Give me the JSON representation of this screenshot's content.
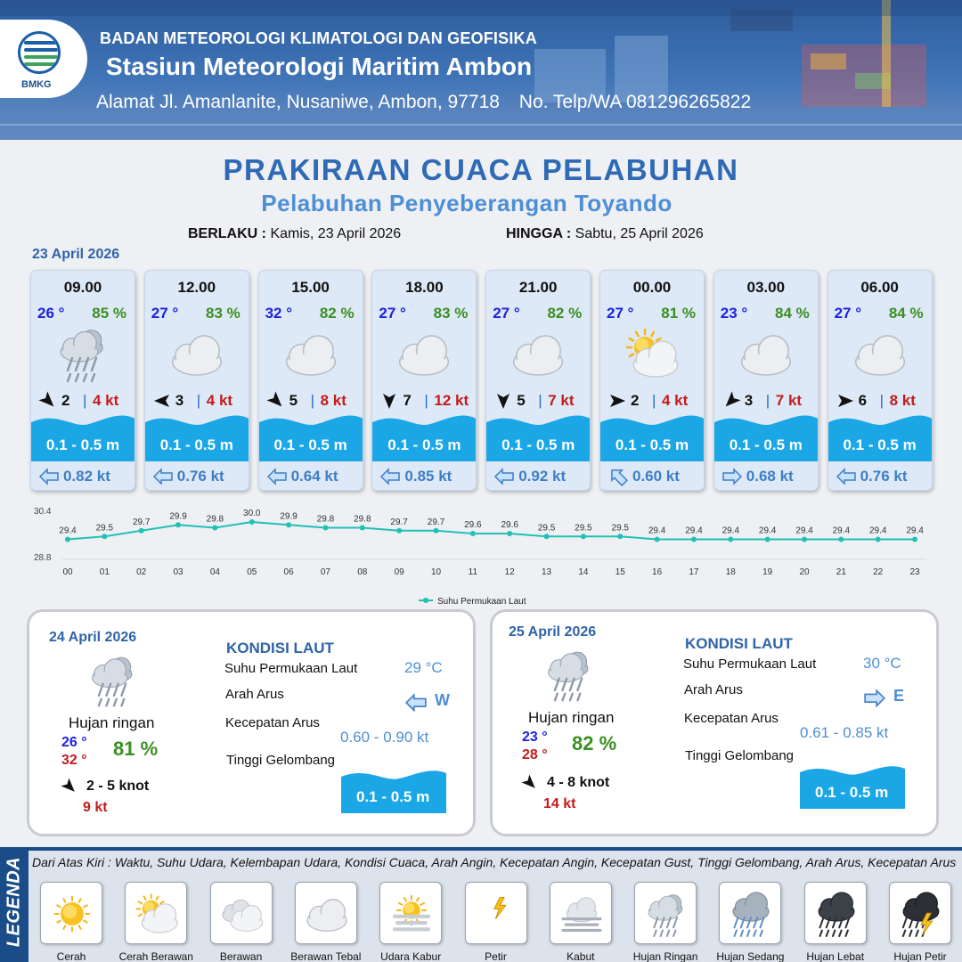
{
  "header": {
    "org": "BADAN METEOROLOGI KLIMATOLOGI DAN GEOFISIKA",
    "station": "Stasiun Meteorologi Maritim Ambon",
    "address": "Alamat Jl. Amanlanite, Nusaniwe, Ambon, 97718",
    "phone": "No. Telp/WA  081296265822",
    "logo_text": "BMKG"
  },
  "title": "PRAKIRAAN CUACA PELABUHAN",
  "subtitle": "Pelabuhan Penyeberangan Toyando",
  "validity": {
    "from_label": "BERLAKU :",
    "from": "Kamis, 23 April 2026",
    "to_label": "HINGGA :",
    "to": "Sabtu, 25 April 2026"
  },
  "day1_date": "23 April 2026",
  "hourly": [
    {
      "time": "09.00",
      "temp": "26 °",
      "hum": "85 %",
      "icon": "hujan-ringan",
      "wind_dir_deg": 135,
      "wind": "2",
      "gust": "4 kt",
      "wave": "0.1 - 0.5 m",
      "cur_dir_deg": 270,
      "cur": "0.82 kt"
    },
    {
      "time": "12.00",
      "temp": "27 °",
      "hum": "83 %",
      "icon": "berawan-tebal",
      "wind_dir_deg": 270,
      "wind": "3",
      "gust": "4 kt",
      "wave": "0.1 - 0.5 m",
      "cur_dir_deg": 270,
      "cur": "0.76 kt"
    },
    {
      "time": "15.00",
      "temp": "32 °",
      "hum": "82 %",
      "icon": "berawan-tebal",
      "wind_dir_deg": 135,
      "wind": "5",
      "gust": "8 kt",
      "wave": "0.1 - 0.5 m",
      "cur_dir_deg": 270,
      "cur": "0.64 kt"
    },
    {
      "time": "18.00",
      "temp": "27 °",
      "hum": "83 %",
      "icon": "berawan-tebal",
      "wind_dir_deg": 180,
      "wind": "7",
      "gust": "12 kt",
      "wave": "0.1 - 0.5 m",
      "cur_dir_deg": 270,
      "cur": "0.85 kt"
    },
    {
      "time": "21.00",
      "temp": "27 °",
      "hum": "82 %",
      "icon": "berawan-tebal",
      "wind_dir_deg": 180,
      "wind": "5",
      "gust": "7 kt",
      "wave": "0.1 - 0.5 m",
      "cur_dir_deg": 270,
      "cur": "0.92 kt"
    },
    {
      "time": "00.00",
      "temp": "27 °",
      "hum": "81 %",
      "icon": "cerah-berawan",
      "wind_dir_deg": 90,
      "wind": "2",
      "gust": "4 kt",
      "wave": "0.1 - 0.5 m",
      "cur_dir_deg": 315,
      "cur": "0.60 kt"
    },
    {
      "time": "03.00",
      "temp": "23 °",
      "hum": "84 %",
      "icon": "berawan-tebal",
      "wind_dir_deg": 225,
      "wind": "3",
      "gust": "7 kt",
      "wave": "0.1 - 0.5 m",
      "cur_dir_deg": 90,
      "cur": "0.68 kt"
    },
    {
      "time": "06.00",
      "temp": "27 °",
      "hum": "84 %",
      "icon": "berawan-tebal",
      "wind_dir_deg": 90,
      "wind": "6",
      "gust": "8 kt",
      "wave": "0.1 - 0.5 m",
      "cur_dir_deg": 270,
      "cur": "0.76 kt"
    }
  ],
  "chart_data": {
    "type": "line",
    "title": "",
    "xlabel": "",
    "ylabel": "",
    "categories": [
      "00",
      "01",
      "02",
      "03",
      "04",
      "05",
      "06",
      "07",
      "08",
      "09",
      "10",
      "11",
      "12",
      "13",
      "14",
      "15",
      "16",
      "17",
      "18",
      "19",
      "20",
      "21",
      "22",
      "23"
    ],
    "series": [
      {
        "name": "Suhu Permukaan Laut",
        "values": [
          29.4,
          29.5,
          29.7,
          29.9,
          29.8,
          30.0,
          29.9,
          29.8,
          29.8,
          29.7,
          29.7,
          29.6,
          29.6,
          29.5,
          29.5,
          29.5,
          29.4,
          29.4,
          29.4,
          29.4,
          29.4,
          29.4,
          29.4,
          29.4
        ]
      }
    ],
    "ylim": [
      28.8,
      30.4
    ],
    "y_ticks": [
      "30.4",
      "28.8"
    ],
    "legend_position": "bottom",
    "grid": false,
    "color": "#20c0b4"
  },
  "daily": [
    {
      "date": "24 April 2026",
      "icon": "hujan-ringan",
      "cond": "Hujan ringan",
      "tmin": "26 °",
      "tmax": "32 °",
      "hum": "81 %",
      "wind_dir_deg": 135,
      "wind": "2  - 5 knot",
      "gust": "9 kt",
      "sea_title": "KONDISI LAUT",
      "sst_label": "Suhu Permukaan Laut",
      "sst": "29 °C",
      "dir_label": "Arah Arus",
      "cur_dir_deg": 270,
      "cur_dir": "W",
      "speed_label": "Kecepatan Arus",
      "speed": "0.60 - 0.90 kt",
      "wave_label": "Tinggi Gelombang",
      "wave": "0.1 - 0.5 m"
    },
    {
      "date": "25 April 2026",
      "icon": "hujan-ringan",
      "cond": "Hujan ringan",
      "tmin": "23 °",
      "tmax": "28 °",
      "hum": "82 %",
      "wind_dir_deg": 135,
      "wind": "4  - 8 knot",
      "gust": "14 kt",
      "sea_title": "KONDISI LAUT",
      "sst_label": "Suhu Permukaan Laut",
      "sst": "30 °C",
      "dir_label": "Arah Arus",
      "cur_dir_deg": 90,
      "cur_dir": "E",
      "speed_label": "Kecepatan Arus",
      "speed": "0.61 - 0.85 kt",
      "wave_label": "Tinggi Gelombang",
      "wave": "0.1 - 0.5 m"
    }
  ],
  "legend": {
    "side_label": "LEGENDA",
    "note": "Dari Atas Kiri : Waktu, Suhu Udara, Kelembapan Udara, Kondisi Cuaca, Arah Angin, Kecepatan Angin, Kecepatan Gust, Tinggi Gelombang, Arah Arus, Kecepatan Arus",
    "items": [
      {
        "label": "Cerah",
        "icon": "cerah"
      },
      {
        "label": "Cerah Berawan",
        "icon": "cerah-berawan"
      },
      {
        "label": "Berawan",
        "icon": "berawan"
      },
      {
        "label": "Berawan Tebal",
        "icon": "berawan-tebal"
      },
      {
        "label": "Udara Kabur",
        "icon": "udara-kabur"
      },
      {
        "label": "Petir",
        "icon": "petir"
      },
      {
        "label": "Kabut",
        "icon": "kabut"
      },
      {
        "label": "Hujan Ringan",
        "icon": "hujan-ringan"
      },
      {
        "label": "Hujan Sedang",
        "icon": "hujan-sedang"
      },
      {
        "label": "Hujan Lebat",
        "icon": "hujan-lebat"
      },
      {
        "label": "Hujan Petir",
        "icon": "hujan-petir"
      }
    ]
  }
}
